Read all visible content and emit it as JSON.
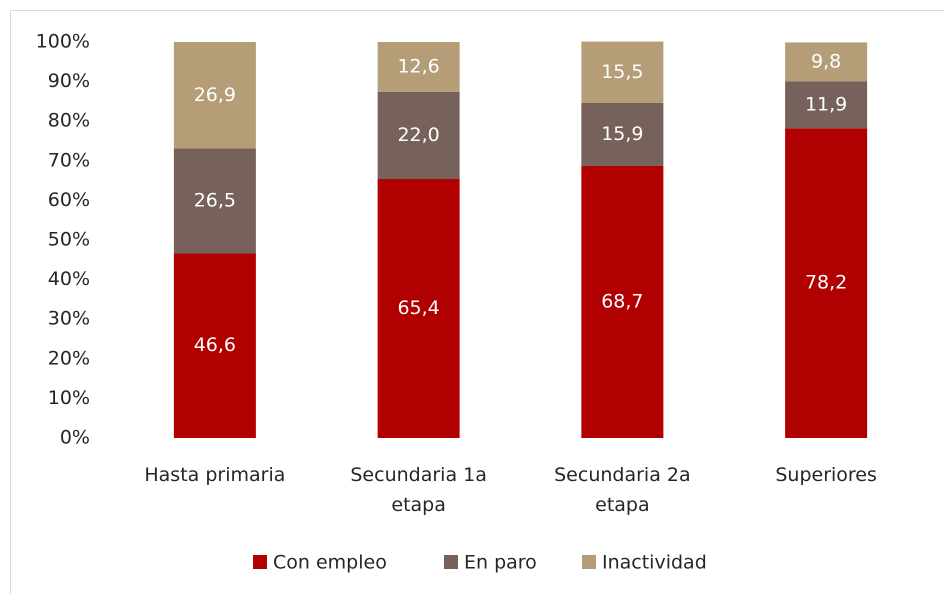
{
  "chart_data": {
    "type": "stacked_bar",
    "categories": [
      "Hasta primaria",
      "Secundaria 1a etapa",
      "Secundaria 2a etapa",
      "Superiores"
    ],
    "series": [
      {
        "name": "Con empleo",
        "color": "#b00000",
        "values": [
          46.6,
          65.4,
          68.7,
          78.2
        ],
        "value_labels": [
          "46,6",
          "65,4",
          "68,7",
          "78,2"
        ]
      },
      {
        "name": "En paro",
        "color": "#76625a",
        "values": [
          26.5,
          22.0,
          15.9,
          11.9
        ],
        "value_labels": [
          "26,5",
          "22,0",
          "15,9",
          "11,9"
        ]
      },
      {
        "name": "Inactividad",
        "color": "#b49d77",
        "values": [
          26.9,
          12.6,
          15.5,
          9.8
        ],
        "value_labels": [
          "26,9",
          "12,6",
          "15,5",
          "9,8"
        ]
      }
    ],
    "ylim": [
      0,
      100
    ],
    "yticks": [
      {
        "value": 0,
        "label": "0%"
      },
      {
        "value": 10,
        "label": "10%"
      },
      {
        "value": 20,
        "label": "20%"
      },
      {
        "value": 30,
        "label": "30%"
      },
      {
        "value": 40,
        "label": "40%"
      },
      {
        "value": 50,
        "label": "50%"
      },
      {
        "value": 60,
        "label": "60%"
      },
      {
        "value": 70,
        "label": "70%"
      },
      {
        "value": 80,
        "label": "80%"
      },
      {
        "value": 90,
        "label": "90%"
      },
      {
        "value": 100,
        "label": "100%"
      }
    ],
    "grid": false,
    "legend": "bottom"
  }
}
